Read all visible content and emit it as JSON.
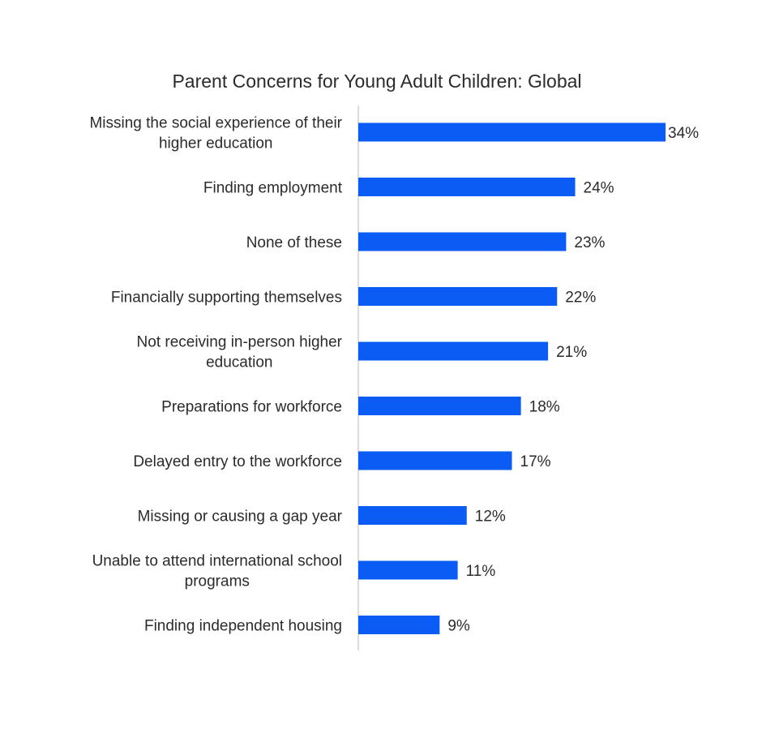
{
  "chart_data": {
    "type": "bar",
    "orientation": "horizontal",
    "title": "Parent Concerns for Young Adult Children: Global",
    "xlabel": "",
    "ylabel": "",
    "grid": false,
    "bar_color": "#0a5cf5",
    "value_suffix": "%",
    "xlim": [
      0,
      34
    ],
    "categories": [
      [
        "Missing the social experience of their",
        "higher education"
      ],
      [
        "Finding employment"
      ],
      [
        "None of these"
      ],
      [
        "Financially supporting themselves"
      ],
      [
        "Not receiving in-person higher",
        "education"
      ],
      [
        "Preparations for workforce"
      ],
      [
        "Delayed entry to the workforce"
      ],
      [
        "Missing or causing a gap year"
      ],
      [
        "Unable to attend international school",
        "programs"
      ],
      [
        "Finding independent housing"
      ]
    ],
    "values": [
      34,
      24,
      23,
      22,
      21,
      18,
      17,
      12,
      11,
      9
    ],
    "value_labels": [
      "34%",
      "24%",
      "23%",
      "22%",
      "21%",
      "18%",
      "17%",
      "12%",
      "11%",
      "9%"
    ]
  }
}
